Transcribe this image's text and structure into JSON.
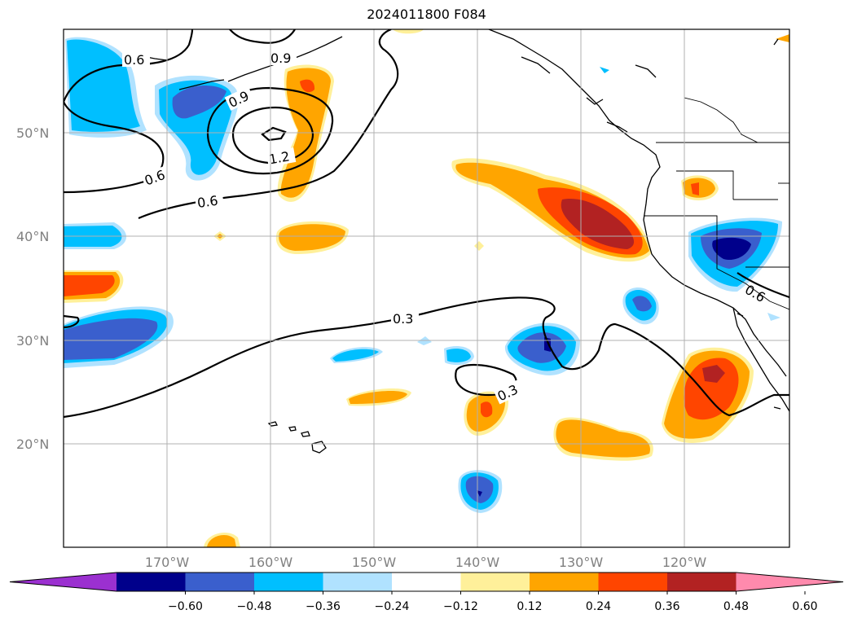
{
  "title": "2024011800 F084",
  "map": {
    "type": "filled contour anomaly map with overlaid contour lines",
    "region": "North Pacific Ocean / western North America",
    "grid": true,
    "lat_labels": [
      "50°N",
      "40°N",
      "30°N",
      "20°N"
    ],
    "lon_labels": [
      "170°W",
      "160°W",
      "150°W",
      "140°W",
      "130°W",
      "120°W"
    ],
    "contour_labels": [
      "0.6",
      "0.9",
      "0.9",
      "1.2",
      "0.6",
      "0.6",
      "0.3",
      "0.3",
      "0.6"
    ]
  },
  "colorbar": {
    "extend": "both",
    "colors": [
      "#9b30d0",
      "#00008b",
      "#3a5fcd",
      "#00bfff",
      "#b0e2ff",
      "#ffffff",
      "#fff09a",
      "#ffa500",
      "#ff4500",
      "#b22222",
      "#ff8aad"
    ],
    "tick_labels": [
      "−0.60",
      "−0.48",
      "−0.36",
      "−0.24",
      "−0.12",
      "0.12",
      "0.24",
      "0.36",
      "0.48",
      "0.60"
    ]
  }
}
